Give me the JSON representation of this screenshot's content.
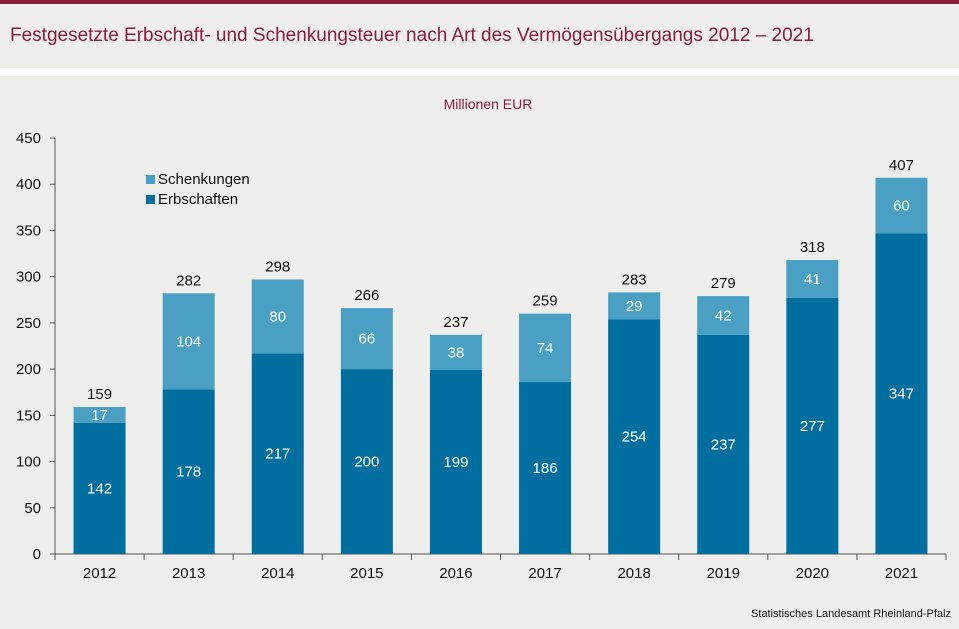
{
  "header": {
    "title": "Festgesetzte Erbschaft- und Schenkungsteuer nach Art des Vermögensübergangs 2012 – 2021"
  },
  "footer": {
    "source": "Statistisches Landesamt Rheinland-Pfalz"
  },
  "colors": {
    "erbschaften": "#006e9e",
    "schenkungen": "#4aa0c2",
    "title": "#8b1c3a",
    "background": "#eeefed"
  },
  "chart_data": {
    "type": "bar",
    "stacked": true,
    "title": "Festgesetzte Erbschaft- und Schenkungsteuer nach Art des Vermögensübergangs 2012 – 2021",
    "unit_label": "Millionen  EUR",
    "xlabel": "",
    "ylabel": "Millionen EUR",
    "ylim": [
      0,
      450
    ],
    "yticks": [
      0,
      50,
      100,
      150,
      200,
      250,
      300,
      350,
      400,
      450
    ],
    "grid": false,
    "legend_position": "top-left",
    "categories": [
      "2012",
      "2013",
      "2014",
      "2015",
      "2016",
      "2017",
      "2018",
      "2019",
      "2020",
      "2021"
    ],
    "series": [
      {
        "name": "Erbschaften",
        "values": [
          142,
          178,
          217,
          200,
          199,
          186,
          254,
          237,
          277,
          347
        ]
      },
      {
        "name": "Schenkungen",
        "values": [
          17,
          104,
          80,
          66,
          38,
          74,
          29,
          42,
          41,
          60
        ]
      }
    ],
    "totals": [
      159,
      282,
      298,
      266,
      237,
      259,
      283,
      279,
      318,
      407
    ],
    "legend": [
      "Schenkungen",
      "Erbschaften"
    ]
  }
}
